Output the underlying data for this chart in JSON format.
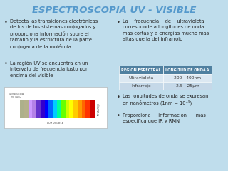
{
  "bg_color": "#bfddec",
  "title": "ESPECTROSCOPIA UV - VISIBLE",
  "title_color": "#5599cc",
  "title_fontsize": 9.5,
  "left_bullets": [
    "Detecta las transiciones electrónicas\nde los de los sistemas conjugados y\nproporciona información sobre el\ntamaño y la estructura de la parte\nconjugada de la molécula",
    "La región UV se encuentra en un\nintervalo de frecuencia justo por\nencima del visible"
  ],
  "right_bullet1": "La    frecuencia    de    ultravioleta\ncorresponde a longitudes de onda\nmas cortas y a energías mucho mas\naltas que la del infrarrojo",
  "table_header": [
    "REGION ESPECTRAL",
    "LONGITUD DE ONDA λ"
  ],
  "table_rows": [
    [
      "Ultravioleta",
      "200 - 400nm"
    ],
    [
      "Infrarrojo",
      "2.5 - 25µm"
    ]
  ],
  "right_bullet2": "Las longitudes de onda se expresan\nen nanómetros (1nm = 10⁻⁹)",
  "right_bullet3": "Proporciona     información      mas\nespecifica que IR y RMN",
  "bullet_fontsize": 4.8,
  "table_header_bg": "#5080a0",
  "table_header_color": "#ffffff",
  "table_row1_bg": "#dce8f2",
  "table_row2_bg": "#c5d8e8",
  "table_fontsize": 4.3,
  "spectrum_colors": [
    "#88cc00",
    "#99cc00",
    "#cc99ff",
    "#9966cc",
    "#6633cc",
    "#3300cc",
    "#0000ff",
    "#0066ff",
    "#00ccff",
    "#00ff99",
    "#66ff00",
    "#ccff00",
    "#ffff00",
    "#ffcc00",
    "#ff9900",
    "#ff6600",
    "#ff3300",
    "#cc0000"
  ],
  "spectrum_bg": "#ffffff"
}
